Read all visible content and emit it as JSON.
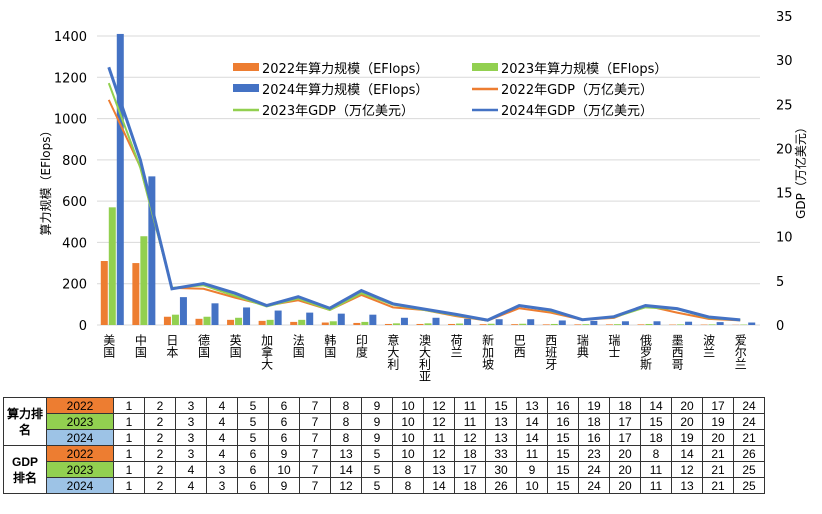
{
  "chart_data": {
    "type": "bar+line",
    "categories": [
      "美国",
      "中国",
      "日本",
      "德国",
      "英国",
      "加拿大",
      "法国",
      "韩国",
      "印度",
      "意大利",
      "澳大利亚",
      "荷兰",
      "新加坡",
      "巴西",
      "西班牙",
      "瑞典",
      "瑞士",
      "俄罗斯",
      "墨西哥",
      "波兰",
      "爱尔兰"
    ],
    "ylabel": "算力规模（EFlops）",
    "y2label": "GDP（万亿美元）",
    "ylim": [
      0,
      1400
    ],
    "y2lim": [
      0,
      35
    ],
    "yticks": [
      0,
      200,
      400,
      600,
      800,
      1000,
      1200,
      1400
    ],
    "y2ticks": [
      0,
      5,
      10,
      15,
      20,
      25,
      30,
      35
    ],
    "grid": true,
    "legend": "top-center",
    "bars": [
      {
        "name": "2022年算力规模（EFlops）",
        "color": "#ED7D31",
        "values": [
          310,
          300,
          40,
          30,
          25,
          20,
          15,
          12,
          10,
          5,
          5,
          5,
          4,
          4,
          3,
          3,
          3,
          3,
          2,
          2,
          1
        ]
      },
      {
        "name": "2023年算力规模（EFlops）",
        "color": "#92D050",
        "values": [
          570,
          430,
          50,
          40,
          35,
          25,
          25,
          18,
          15,
          8,
          8,
          7,
          6,
          6,
          5,
          4,
          4,
          5,
          3,
          3,
          2
        ]
      },
      {
        "name": "2024年算力规模（EFlops）",
        "color": "#4472C4",
        "values": [
          1410,
          720,
          135,
          105,
          85,
          70,
          60,
          55,
          50,
          35,
          35,
          30,
          28,
          28,
          22,
          20,
          18,
          18,
          16,
          14,
          12
        ]
      }
    ],
    "lines": [
      {
        "name": "2022年GDP（万亿美元）",
        "color": "#ED7D31",
        "values": [
          25.5,
          17.9,
          4.2,
          4.1,
          3.1,
          2.2,
          2.8,
          1.7,
          3.4,
          2.0,
          1.7,
          1.0,
          0.5,
          1.9,
          1.4,
          0.59,
          0.8,
          2.2,
          1.4,
          0.69,
          0.53
        ]
      },
      {
        "name": "2023年GDP（万亿美元）",
        "color": "#92D050",
        "values": [
          27.4,
          17.8,
          4.2,
          4.5,
          3.3,
          2.1,
          3.0,
          1.7,
          3.6,
          2.3,
          1.7,
          1.1,
          0.5,
          2.2,
          1.6,
          0.59,
          0.88,
          2.0,
          1.8,
          0.81,
          0.55
        ]
      },
      {
        "name": "2024年GDP（万亿美元）",
        "color": "#4472C4",
        "values": [
          29.2,
          18.7,
          4.1,
          4.7,
          3.6,
          2.2,
          3.2,
          1.9,
          3.9,
          2.4,
          1.8,
          1.2,
          0.55,
          2.2,
          1.7,
          0.6,
          0.94,
          2.2,
          1.85,
          0.91,
          0.58
        ]
      }
    ]
  },
  "table": {
    "groups": [
      {
        "label": "算力排名",
        "rows": [
          {
            "year": "2022",
            "color": "#ED7D31",
            "values": [
              1,
              2,
              3,
              4,
              5,
              6,
              7,
              8,
              9,
              10,
              12,
              11,
              15,
              13,
              16,
              19,
              18,
              14,
              20,
              17,
              24
            ]
          },
          {
            "year": "2023",
            "color": "#92D050",
            "values": [
              1,
              2,
              3,
              4,
              5,
              6,
              7,
              8,
              9,
              10,
              12,
              11,
              13,
              14,
              16,
              18,
              17,
              15,
              20,
              19,
              24
            ]
          },
          {
            "year": "2024",
            "color": "#9DC3E6",
            "values": [
              1,
              2,
              3,
              4,
              5,
              6,
              7,
              8,
              9,
              10,
              11,
              12,
              13,
              14,
              15,
              16,
              17,
              18,
              19,
              20,
              21
            ]
          }
        ]
      },
      {
        "label": "GDP排名",
        "rows": [
          {
            "year": "2022",
            "color": "#ED7D31",
            "values": [
              1,
              2,
              3,
              4,
              6,
              9,
              7,
              13,
              5,
              10,
              12,
              18,
              33,
              11,
              15,
              23,
              20,
              8,
              14,
              21,
              26
            ]
          },
          {
            "year": "2023",
            "color": "#92D050",
            "values": [
              1,
              2,
              4,
              3,
              6,
              10,
              7,
              14,
              5,
              8,
              13,
              17,
              30,
              9,
              15,
              24,
              20,
              11,
              12,
              21,
              25
            ]
          },
          {
            "year": "2024",
            "color": "#9DC3E6",
            "values": [
              1,
              2,
              4,
              3,
              6,
              9,
              7,
              12,
              5,
              8,
              14,
              18,
              26,
              10,
              15,
              24,
              20,
              11,
              13,
              21,
              25
            ]
          }
        ]
      }
    ]
  }
}
